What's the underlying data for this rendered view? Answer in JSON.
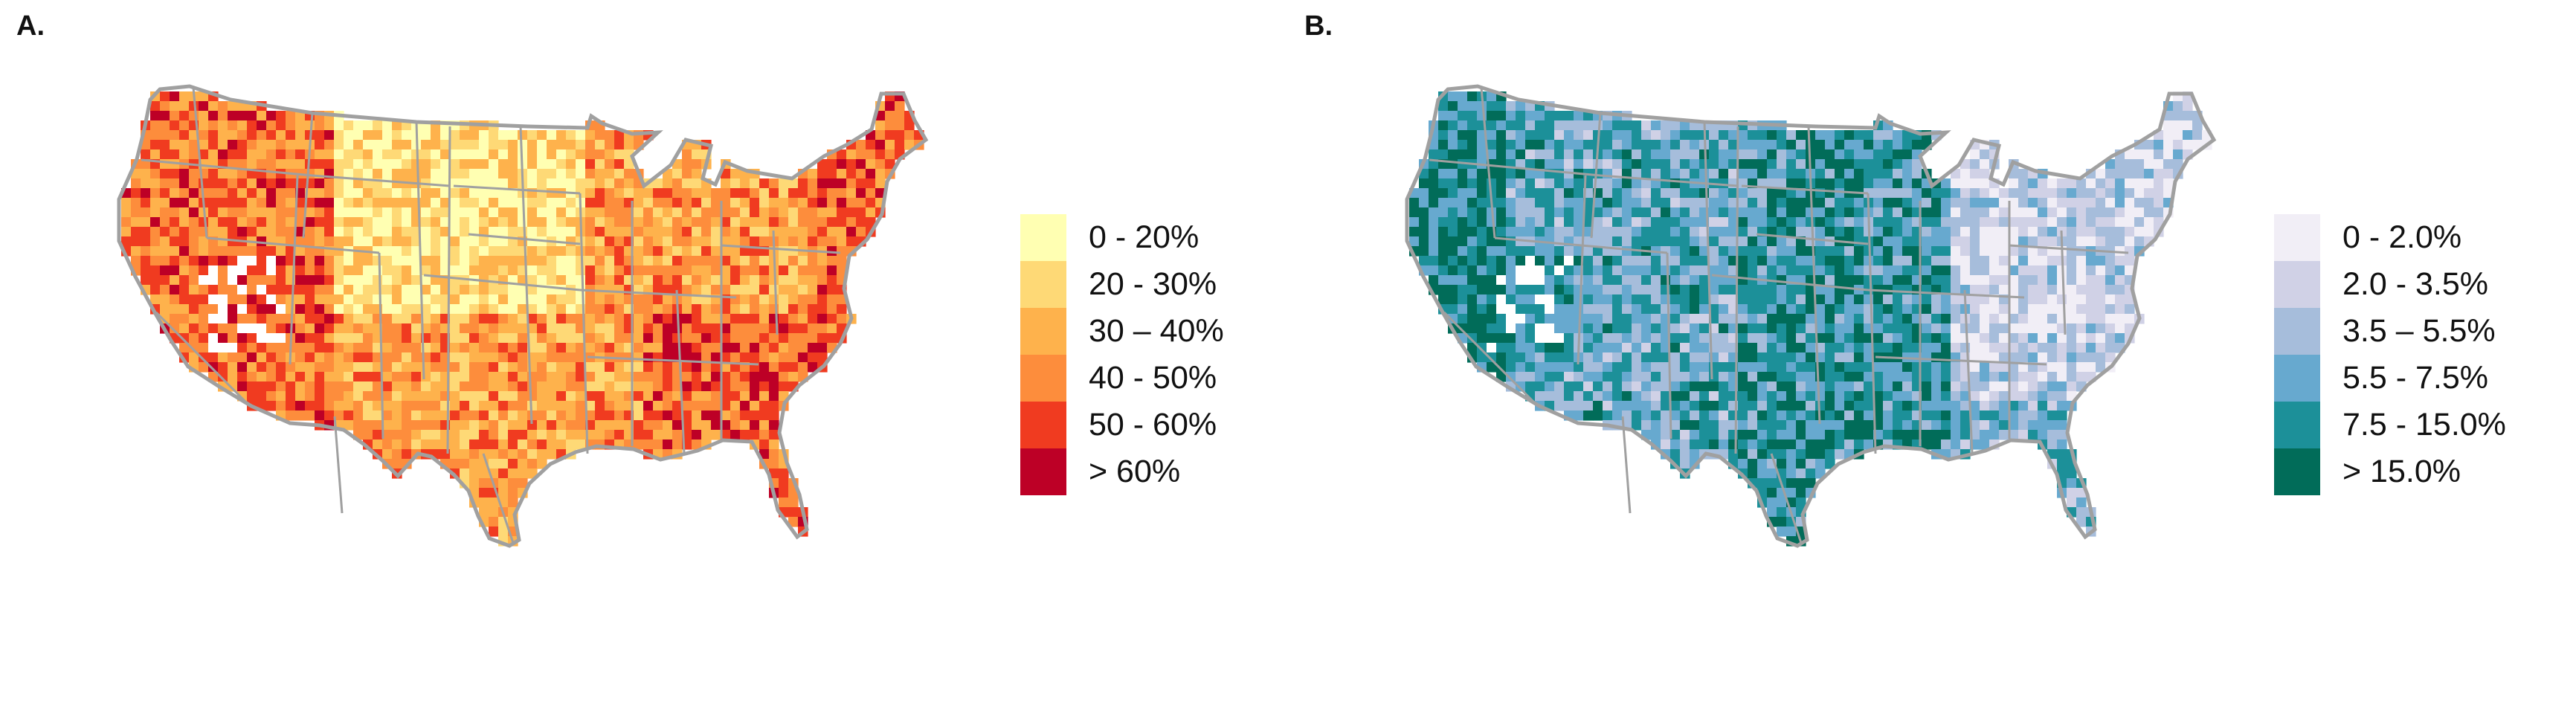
{
  "panels": [
    {
      "label": "A.",
      "legend": [
        {
          "text": "0 - 20%",
          "color": "#FFFFB2"
        },
        {
          "text": "20 - 30%",
          "color": "#FED976"
        },
        {
          "text": "30 – 40%",
          "color": "#FEB24C"
        },
        {
          "text": "40 - 50%",
          "color": "#FD8D3C"
        },
        {
          "text": "50 - 60%",
          "color": "#F03B20"
        },
        {
          "text": "> 60%",
          "color": "#BD0026"
        }
      ]
    },
    {
      "label": "B.",
      "legend": [
        {
          "text": "0 - 2.0%",
          "color": "#F1EEF6"
        },
        {
          "text": "2.0 - 3.5%",
          "color": "#D0D1E6"
        },
        {
          "text": "3.5 – 5.5%",
          "color": "#A6BDDB"
        },
        {
          "text": "5.5 - 7.5%",
          "color": "#67A9CF"
        },
        {
          "text": "7.5 - 15.0%",
          "color": "#1C9099"
        },
        {
          "text": "> 15.0%",
          "color": "#016C59"
        }
      ]
    }
  ],
  "style": {
    "state_border_color": "#A0A0A0",
    "no_data_color": "#FFFFFF"
  }
}
